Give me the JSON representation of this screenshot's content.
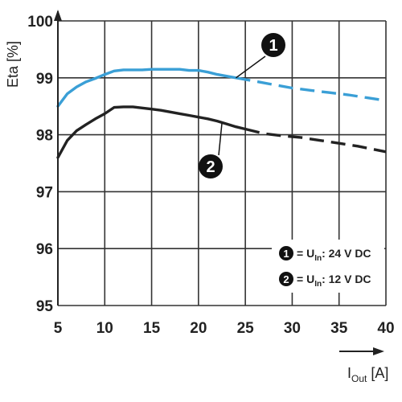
{
  "chart_data": {
    "type": "line",
    "ylabel": "Eta [%]",
    "xlabel_main": "I",
    "xlabel_sub": "Out",
    "xlabel_unit": " [A]",
    "xlim": [
      5,
      40
    ],
    "ylim": [
      95,
      100
    ],
    "x_ticks": [
      "5",
      "10",
      "15",
      "20",
      "25",
      "30",
      "35",
      "40"
    ],
    "y_ticks": [
      "95",
      "96",
      "97",
      "98",
      "99",
      "100"
    ],
    "grid": true,
    "series": [
      {
        "name": "U_In: 24 V DC",
        "badge": "1",
        "color": "#3a9fd6",
        "solid": [
          [
            5,
            98.5
          ],
          [
            6,
            98.72
          ],
          [
            7,
            98.84
          ],
          [
            8,
            98.93
          ],
          [
            9,
            98.99
          ],
          [
            10,
            99.06
          ],
          [
            11,
            99.12
          ],
          [
            12,
            99.14
          ],
          [
            13,
            99.14
          ],
          [
            14,
            99.14
          ],
          [
            15,
            99.15
          ],
          [
            16,
            99.15
          ],
          [
            17,
            99.15
          ],
          [
            18,
            99.15
          ],
          [
            19,
            99.13
          ],
          [
            20,
            99.13
          ],
          [
            21,
            99.1
          ],
          [
            22,
            99.06
          ],
          [
            23,
            99.03
          ],
          [
            24,
            99.0
          ]
        ],
        "dashed": [
          [
            24,
            99.0
          ],
          [
            26,
            98.94
          ],
          [
            28,
            98.88
          ],
          [
            30,
            98.82
          ],
          [
            32,
            98.78
          ],
          [
            34,
            98.74
          ],
          [
            36,
            98.7
          ],
          [
            38,
            98.65
          ],
          [
            40,
            98.6
          ]
        ]
      },
      {
        "name": "U_In: 12 V DC",
        "badge": "2",
        "color": "#222222",
        "solid": [
          [
            5,
            97.6
          ],
          [
            6,
            97.9
          ],
          [
            7,
            98.07
          ],
          [
            8,
            98.18
          ],
          [
            9,
            98.28
          ],
          [
            10,
            98.37
          ],
          [
            11,
            98.48
          ],
          [
            12,
            98.49
          ],
          [
            13,
            98.49
          ],
          [
            14,
            98.47
          ],
          [
            15,
            98.45
          ],
          [
            16,
            98.43
          ],
          [
            17,
            98.4
          ],
          [
            18,
            98.37
          ],
          [
            19,
            98.34
          ],
          [
            20,
            98.31
          ],
          [
            21,
            98.28
          ],
          [
            22,
            98.24
          ],
          [
            23,
            98.19
          ],
          [
            24,
            98.14
          ],
          [
            25,
            98.1
          ]
        ],
        "dashed": [
          [
            25,
            98.1
          ],
          [
            27,
            98.02
          ],
          [
            29,
            97.98
          ],
          [
            31,
            97.95
          ],
          [
            33,
            97.9
          ],
          [
            35,
            97.85
          ],
          [
            37,
            97.8
          ],
          [
            40,
            97.7
          ]
        ]
      }
    ],
    "legend": {
      "placement": "bottom-right",
      "entries": [
        {
          "badge": "1",
          "label_main": "= U",
          "label_sub": "In",
          "label_rest": ": 24 V DC"
        },
        {
          "badge": "2",
          "label_main": "= U",
          "label_sub": "In",
          "label_rest": ": 12 V DC"
        }
      ]
    }
  }
}
